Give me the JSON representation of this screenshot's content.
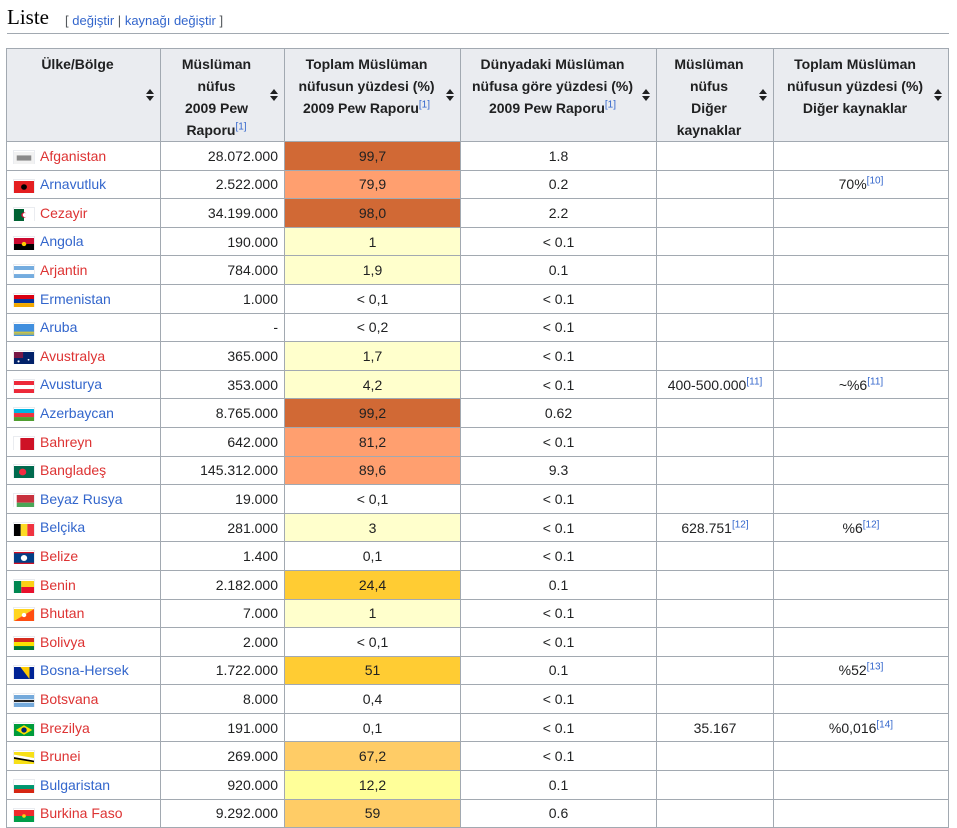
{
  "section": {
    "title": "Liste",
    "edit_open": "[",
    "edit_label": "değiştir",
    "edit_sep": "|",
    "edit_source_label": "kaynağı değiştir",
    "edit_close": "]"
  },
  "table": {
    "headers": [
      {
        "lines": [
          "Ülke/Bölge"
        ],
        "ref": ""
      },
      {
        "lines": [
          "Müslüman",
          "nüfus",
          "2009 Pew",
          "Raporu"
        ],
        "ref": "[1]"
      },
      {
        "lines": [
          "Toplam Müslüman",
          "nüfusun yüzdesi (%)",
          "2009 Pew Raporu"
        ],
        "ref": "[1]"
      },
      {
        "lines": [
          "Dünyadaki Müslüman",
          "nüfusa göre yüzdesi (%)",
          "2009 Pew Raporu"
        ],
        "ref": "[1]"
      },
      {
        "lines": [
          "Müslüman",
          "nüfus",
          "Diğer",
          "kaynaklar"
        ],
        "ref": ""
      },
      {
        "lines": [
          "Toplam Müslüman",
          "nüfusun yüzdesi (%)",
          "Diğer kaynaklar"
        ],
        "ref": ""
      }
    ],
    "rows": [
      {
        "name": "Afganistan",
        "link": "red",
        "flag": "afg",
        "pop": "28.072.000",
        "pct": "99,7",
        "pctColor": "#d16935",
        "world": "1.8",
        "other_pop": "",
        "other_pop_ref": "",
        "other_pct": "",
        "other_pct_ref": ""
      },
      {
        "name": "Arnavutluk",
        "link": "blue",
        "flag": "alb",
        "pop": "2.522.000",
        "pct": "79,9",
        "pctColor": "#ff9f6f",
        "world": "0.2",
        "other_pop": "",
        "other_pop_ref": "",
        "other_pct": "70%",
        "other_pct_ref": "[10]"
      },
      {
        "name": "Cezayir",
        "link": "red",
        "flag": "dza",
        "pop": "34.199.000",
        "pct": "98,0",
        "pctColor": "#d16935",
        "world": "2.2",
        "other_pop": "",
        "other_pop_ref": "",
        "other_pct": "",
        "other_pct_ref": ""
      },
      {
        "name": "Angola",
        "link": "blue",
        "flag": "ago",
        "pop": "190.000",
        "pct": "1",
        "pctColor": "#ffffcc",
        "world": "< 0.1",
        "other_pop": "",
        "other_pop_ref": "",
        "other_pct": "",
        "other_pct_ref": ""
      },
      {
        "name": "Arjantin",
        "link": "red",
        "flag": "arg",
        "pop": "784.000",
        "pct": "1,9",
        "pctColor": "#ffffcc",
        "world": "0.1",
        "other_pop": "",
        "other_pop_ref": "",
        "other_pct": "",
        "other_pct_ref": ""
      },
      {
        "name": "Ermenistan",
        "link": "blue",
        "flag": "arm",
        "pop": "1.000",
        "pct": "< 0,1",
        "pctColor": "#ffffff",
        "world": "< 0.1",
        "other_pop": "",
        "other_pop_ref": "",
        "other_pct": "",
        "other_pct_ref": ""
      },
      {
        "name": "Aruba",
        "link": "blue",
        "flag": "abw",
        "pop": "-",
        "pct": "< 0,2",
        "pctColor": "#ffffff",
        "world": "< 0.1",
        "other_pop": "",
        "other_pop_ref": "",
        "other_pct": "",
        "other_pct_ref": ""
      },
      {
        "name": "Avustralya",
        "link": "red",
        "flag": "aus",
        "pop": "365.000",
        "pct": "1,7",
        "pctColor": "#ffffcc",
        "world": "< 0.1",
        "other_pop": "",
        "other_pop_ref": "",
        "other_pct": "",
        "other_pct_ref": ""
      },
      {
        "name": "Avusturya",
        "link": "blue",
        "flag": "aut",
        "pop": "353.000",
        "pct": "4,2",
        "pctColor": "#ffffcc",
        "world": "< 0.1",
        "other_pop": "400-500.000",
        "other_pop_ref": "[11]",
        "other_pct": "~%6",
        "other_pct_ref": "[11]"
      },
      {
        "name": "Azerbaycan",
        "link": "blue",
        "flag": "aze",
        "pop": "8.765.000",
        "pct": "99,2",
        "pctColor": "#d16935",
        "world": "0.62",
        "other_pop": "",
        "other_pop_ref": "",
        "other_pct": "",
        "other_pct_ref": ""
      },
      {
        "name": "Bahreyn",
        "link": "red",
        "flag": "bhr",
        "pop": "642.000",
        "pct": "81,2",
        "pctColor": "#ff9f6f",
        "world": "< 0.1",
        "other_pop": "",
        "other_pop_ref": "",
        "other_pct": "",
        "other_pct_ref": ""
      },
      {
        "name": "Bangladeş",
        "link": "red",
        "flag": "bgd",
        "pop": "145.312.000",
        "pct": "89,6",
        "pctColor": "#ff9f6f",
        "world": "9.3",
        "other_pop": "",
        "other_pop_ref": "",
        "other_pct": "",
        "other_pct_ref": ""
      },
      {
        "name": "Beyaz Rusya",
        "link": "blue",
        "flag": "blr",
        "pop": "19.000",
        "pct": "< 0,1",
        "pctColor": "#ffffff",
        "world": "< 0.1",
        "other_pop": "",
        "other_pop_ref": "",
        "other_pct": "",
        "other_pct_ref": ""
      },
      {
        "name": "Belçika",
        "link": "blue",
        "flag": "bel",
        "pop": "281.000",
        "pct": "3",
        "pctColor": "#ffffcc",
        "world": "< 0.1",
        "other_pop": "628.751",
        "other_pop_ref": "[12]",
        "other_pct": "%6",
        "other_pct_ref": "[12]"
      },
      {
        "name": "Belize",
        "link": "red",
        "flag": "blz",
        "pop": "1.400",
        "pct": "0,1",
        "pctColor": "#ffffff",
        "world": "< 0.1",
        "other_pop": "",
        "other_pop_ref": "",
        "other_pct": "",
        "other_pct_ref": ""
      },
      {
        "name": "Benin",
        "link": "red",
        "flag": "ben",
        "pop": "2.182.000",
        "pct": "24,4",
        "pctColor": "#ffcc33",
        "world": "0.1",
        "other_pop": "",
        "other_pop_ref": "",
        "other_pct": "",
        "other_pct_ref": ""
      },
      {
        "name": "Bhutan",
        "link": "red",
        "flag": "btn",
        "pop": "7.000",
        "pct": "1",
        "pctColor": "#ffffcc",
        "world": "< 0.1",
        "other_pop": "",
        "other_pop_ref": "",
        "other_pct": "",
        "other_pct_ref": ""
      },
      {
        "name": "Bolivya",
        "link": "red",
        "flag": "bol",
        "pop": "2.000",
        "pct": "< 0,1",
        "pctColor": "#ffffff",
        "world": "< 0.1",
        "other_pop": "",
        "other_pop_ref": "",
        "other_pct": "",
        "other_pct_ref": ""
      },
      {
        "name": "Bosna-Hersek",
        "link": "blue",
        "flag": "bih",
        "pop": "1.722.000",
        "pct": "51",
        "pctColor": "#ffcc33",
        "world": "0.1",
        "other_pop": "",
        "other_pop_ref": "",
        "other_pct": "%52",
        "other_pct_ref": "[13]"
      },
      {
        "name": "Botsvana",
        "link": "red",
        "flag": "bwa",
        "pop": "8.000",
        "pct": "0,4",
        "pctColor": "#ffffff",
        "world": "< 0.1",
        "other_pop": "",
        "other_pop_ref": "",
        "other_pct": "",
        "other_pct_ref": ""
      },
      {
        "name": "Brezilya",
        "link": "red",
        "flag": "bra",
        "pop": "191.000",
        "pct": "0,1",
        "pctColor": "#ffffff",
        "world": "< 0.1",
        "other_pop": "35.167",
        "other_pop_ref": "",
        "other_pct": "%0,016",
        "other_pct_ref": "[14]"
      },
      {
        "name": "Brunei",
        "link": "red",
        "flag": "brn",
        "pop": "269.000",
        "pct": "67,2",
        "pctColor": "#ffcc66",
        "world": "< 0.1",
        "other_pop": "",
        "other_pop_ref": "",
        "other_pct": "",
        "other_pct_ref": ""
      },
      {
        "name": "Bulgaristan",
        "link": "blue",
        "flag": "bgr",
        "pop": "920.000",
        "pct": "12,2",
        "pctColor": "#ffff99",
        "world": "0.1",
        "other_pop": "",
        "other_pop_ref": "",
        "other_pct": "",
        "other_pct_ref": ""
      },
      {
        "name": "Burkina Faso",
        "link": "red",
        "flag": "bfa",
        "pop": "9.292.000",
        "pct": "59",
        "pctColor": "#ffcc66",
        "world": "0.6",
        "other_pop": "",
        "other_pop_ref": "",
        "other_pct": "",
        "other_pct_ref": ""
      }
    ]
  },
  "colors": {
    "link_blue": "#3366cc",
    "link_red": "#dd3333",
    "header_bg": "#eaecf0",
    "border": "#a2a9b1"
  }
}
